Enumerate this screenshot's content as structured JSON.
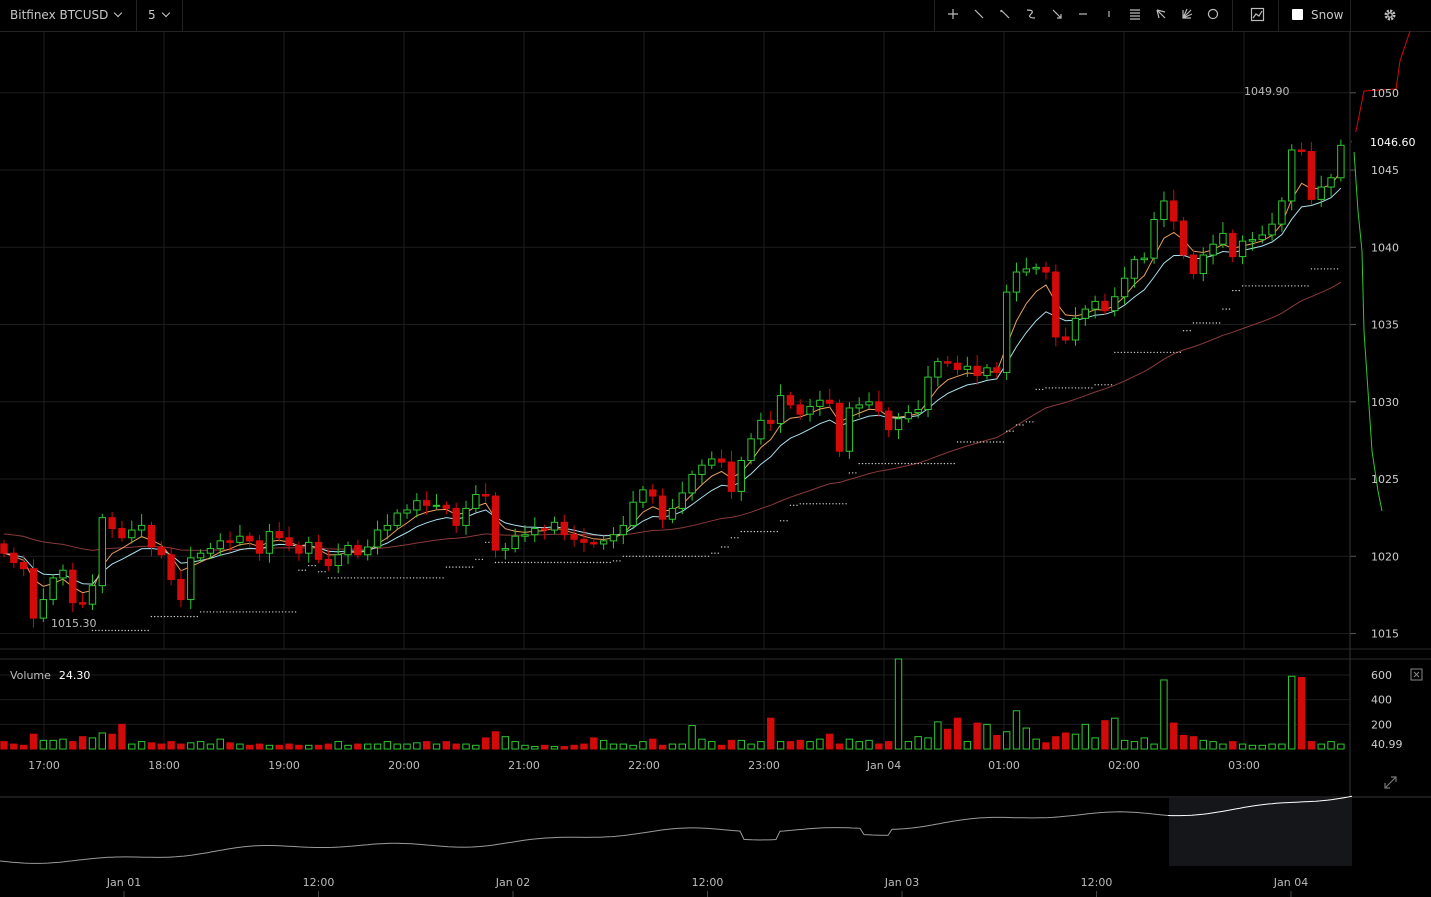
{
  "toolbar": {
    "symbol_label": "Bitfinex BTCUSD",
    "interval_label": "5",
    "snow_label": "Snow",
    "tools": [
      "crosshair-icon",
      "trend-line-icon",
      "ray-icon",
      "curve-icon",
      "arrow-icon",
      "horizontal-line-icon",
      "vertical-line-icon",
      "fibonacci-icon",
      "pitchfork-icon",
      "gann-fan-icon",
      "circle-icon"
    ]
  },
  "chart_data": [
    {
      "type": "candlestick",
      "title": "Bitfinex BTCUSD",
      "y_ticks": [
        1015,
        1020,
        1025,
        1030,
        1035,
        1040,
        1045,
        1050
      ],
      "ylim": [
        1014,
        1054
      ],
      "x_ticks": [
        "17:00",
        "18:00",
        "19:00",
        "20:00",
        "21:00",
        "22:00",
        "23:00",
        "Jan 04",
        "01:00",
        "02:00",
        "03:00"
      ],
      "last_price": "1046.60",
      "high_label": "1049.90",
      "low_label": "1015.30",
      "colors": {
        "up": "#2ec82e",
        "down": "#d20a0a",
        "ema_fast": "#e8a060",
        "ema_slow": "#a8e0ec",
        "ema_long": "#8a3a3a",
        "sar": "#cccccc"
      },
      "candles_close": [
        1020.2,
        1019.6,
        1019.2,
        1016.0,
        1017.2,
        1018.6,
        1019.1,
        1017.0,
        1016.9,
        1018.1,
        1022.5,
        1021.8,
        1021.2,
        1021.7,
        1022.0,
        1020.6,
        1020.1,
        1018.5,
        1017.2,
        1019.9,
        1020.2,
        1020.5,
        1021.0,
        1020.9,
        1021.3,
        1021.0,
        1020.2,
        1021.6,
        1021.2,
        1020.7,
        1020.2,
        1020.9,
        1019.8,
        1019.4,
        1020.1,
        1020.7,
        1020.1,
        1020.6,
        1021.7,
        1022.0,
        1022.8,
        1023.0,
        1023.6,
        1023.3,
        1023.3,
        1023.1,
        1022.0,
        1023.1,
        1024.0,
        1023.9,
        1020.4,
        1020.5,
        1021.3,
        1021.4,
        1021.8,
        1021.7,
        1022.2,
        1021.4,
        1021.1,
        1020.9,
        1020.8,
        1021.0,
        1021.4,
        1022.0,
        1023.5,
        1024.3,
        1023.9,
        1022.4,
        1023.1,
        1024.1,
        1025.3,
        1025.9,
        1026.3,
        1026.1,
        1024.2,
        1026.2,
        1027.6,
        1028.8,
        1028.6,
        1030.4,
        1029.8,
        1029.2,
        1029.7,
        1030.1,
        1029.9,
        1026.8,
        1029.6,
        1029.8,
        1030.0,
        1029.4,
        1028.2,
        1028.9,
        1029.3,
        1029.5,
        1031.6,
        1032.6,
        1032.5,
        1032.1,
        1032.3,
        1031.7,
        1032.2,
        1031.9,
        1037.1,
        1038.4,
        1038.6,
        1038.7,
        1038.4,
        1034.2,
        1034.0,
        1035.4,
        1036.0,
        1036.5,
        1035.9,
        1036.8,
        1038.0,
        1039.2,
        1039.3,
        1041.8,
        1043.0,
        1041.7,
        1039.5,
        1038.3,
        1039.5,
        1040.2,
        1040.9,
        1039.4,
        1040.4,
        1040.5,
        1040.8,
        1041.5,
        1043.0,
        1046.3,
        1046.2,
        1043.1,
        1043.9,
        1044.5,
        1046.6
      ],
      "volume_y_ticks": [
        200,
        400,
        600
      ],
      "volume_label": "Volume",
      "volume_value": "24.30",
      "volume_last": "40.99",
      "volumes": [
        60,
        40,
        30,
        120,
        70,
        70,
        80,
        60,
        100,
        90,
        130,
        120,
        200,
        40,
        60,
        50,
        40,
        60,
        40,
        50,
        60,
        40,
        80,
        50,
        40,
        30,
        40,
        30,
        30,
        40,
        30,
        30,
        30,
        40,
        60,
        30,
        40,
        40,
        40,
        60,
        40,
        40,
        50,
        60,
        40,
        60,
        40,
        40,
        30,
        90,
        140,
        100,
        60,
        30,
        20,
        30,
        20,
        20,
        30,
        40,
        90,
        70,
        40,
        40,
        30,
        60,
        80,
        30,
        40,
        40,
        190,
        80,
        60,
        30,
        70,
        70,
        40,
        60,
        250,
        60,
        60,
        70,
        60,
        80,
        120,
        40,
        80,
        60,
        70,
        40,
        60,
        730,
        60,
        100,
        90,
        220,
        160,
        250,
        60,
        210,
        200,
        110,
        140,
        310,
        170,
        80,
        50,
        100,
        130,
        120,
        200,
        90,
        230,
        250,
        70,
        60,
        90,
        40,
        560,
        210,
        110,
        100,
        70,
        60,
        40,
        60,
        40,
        30,
        30,
        40,
        40,
        590,
        580,
        60,
        40,
        60,
        40
      ]
    },
    {
      "type": "line",
      "x_ticks": [
        "Jan 01",
        "12:00",
        "Jan 02",
        "12:00",
        "Jan 03",
        "12:00",
        "Jan 04"
      ]
    }
  ]
}
